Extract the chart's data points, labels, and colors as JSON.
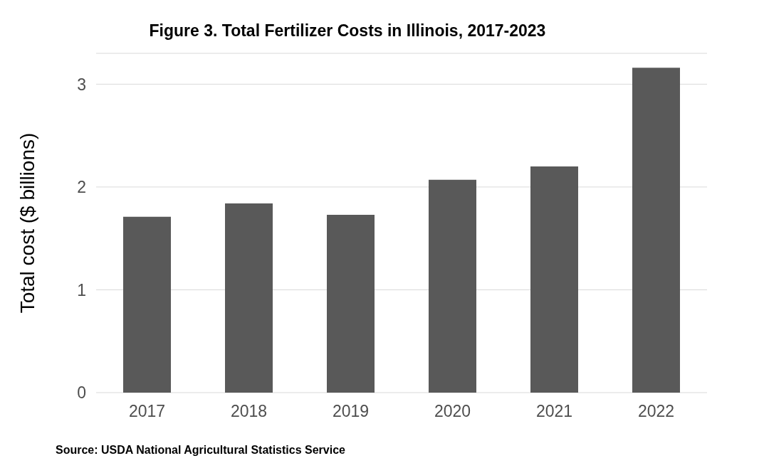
{
  "chart_data": {
    "type": "bar",
    "title": "Figure 3. Total Fertilizer Costs in Illinois, 2017-2023",
    "ylabel": "Total cost ($ billions)",
    "categories": [
      "2017",
      "2018",
      "2019",
      "2020",
      "2021",
      "2022"
    ],
    "values": [
      1.71,
      1.84,
      1.73,
      2.07,
      2.2,
      3.16
    ],
    "color": "#595959",
    "ylim": [
      0,
      3.3
    ],
    "yticks": [
      0,
      1,
      2,
      3
    ],
    "grid": "y",
    "annotations": [
      "Source: USDA National Agricultural Statistics Service"
    ]
  }
}
